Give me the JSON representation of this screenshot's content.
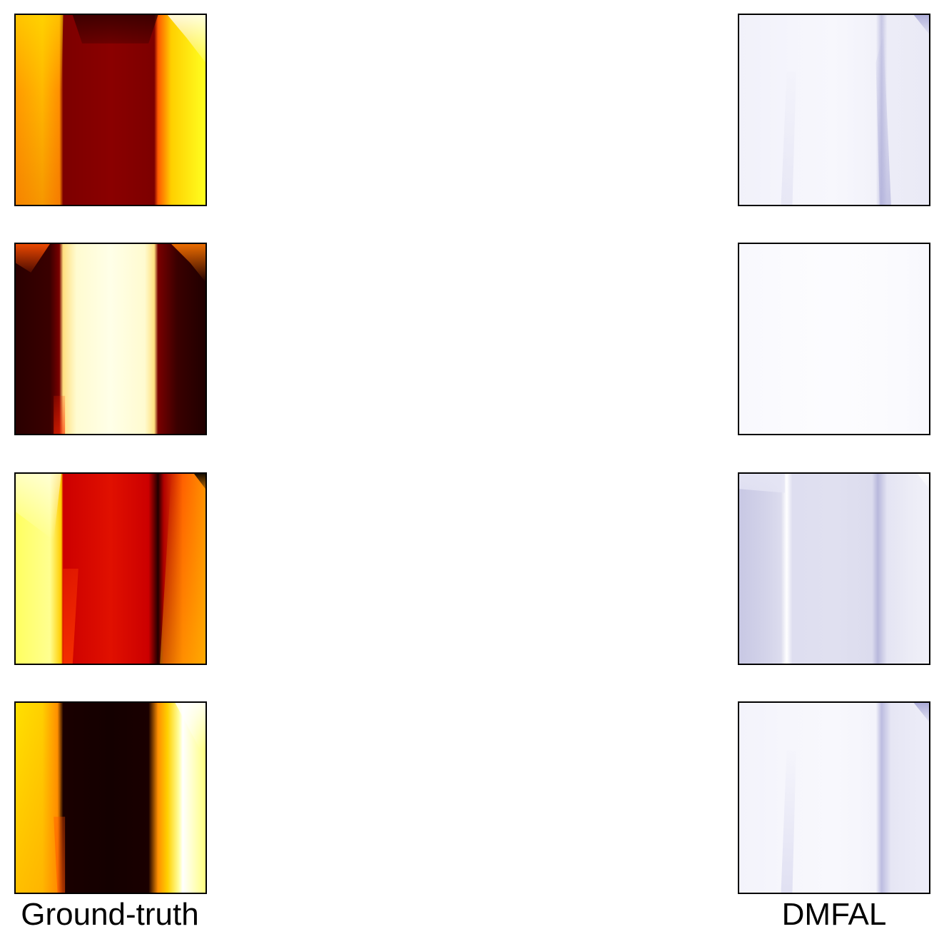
{
  "columns": {
    "left_label": "Ground-truth",
    "right_label": "DMFAL"
  },
  "panels": {
    "ground_truth": [
      "gt-row-1",
      "gt-row-2",
      "gt-row-3",
      "gt-row-4"
    ],
    "dmfal": [
      "dmfal-row-1",
      "dmfal-row-2",
      "dmfal-row-3",
      "dmfal-row-4"
    ]
  },
  "colormaps": {
    "ground_truth": "hot",
    "dmfal": "purples-light"
  },
  "colors": {
    "border": "#000000",
    "background": "#ffffff",
    "label_text": "#000000"
  }
}
